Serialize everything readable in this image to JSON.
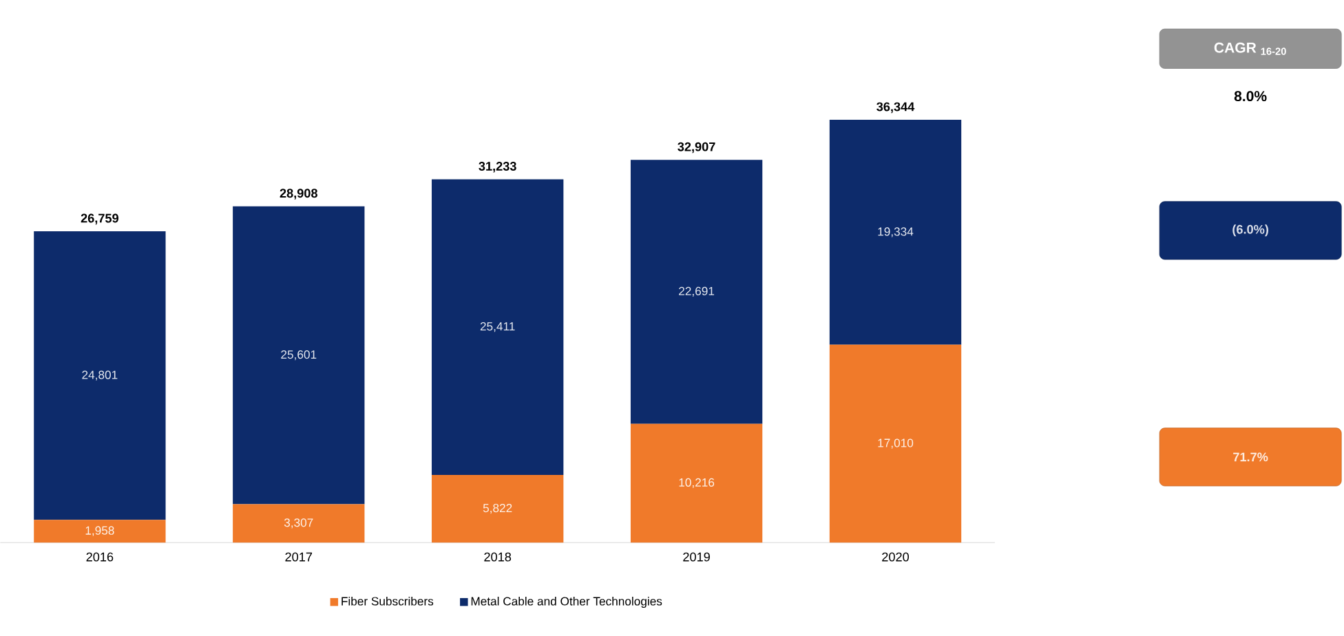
{
  "chart_data": {
    "type": "bar",
    "stacked": true,
    "legend": "bottom",
    "categories": [
      "2016",
      "2017",
      "2018",
      "2019",
      "2020"
    ],
    "series": [
      {
        "name": "Fiber Subscribers",
        "color": "#f07a2a",
        "values": [
          1958,
          3307,
          5822,
          10216,
          17010
        ],
        "value_labels": [
          "1,958",
          "3,307",
          "5,822",
          "10,216",
          "17,010"
        ]
      },
      {
        "name": "Metal Cable and Other Technologies",
        "color": "#0d2b6b",
        "values": [
          24801,
          25601,
          25411,
          22691,
          19334
        ],
        "value_labels": [
          "24,801",
          "25,601",
          "25,411",
          "22,691",
          "19,334"
        ]
      }
    ],
    "totals": [
      "26,759",
      "28,908",
      "31,233",
      "32,907",
      "36,344"
    ],
    "annotations": [
      "CAGR $_{16-20}$",
      "8.0%",
      "(6.0%)",
      "71.7%"
    ]
  }
}
